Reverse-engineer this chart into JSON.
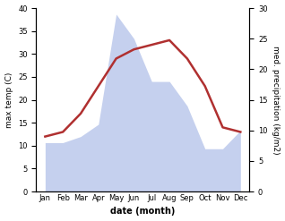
{
  "months": [
    "Jan",
    "Feb",
    "Mar",
    "Apr",
    "May",
    "Jun",
    "Jul",
    "Aug",
    "Sep",
    "Oct",
    "Nov",
    "Dec"
  ],
  "temperature": [
    12,
    13,
    17,
    23,
    29,
    31,
    32,
    33,
    29,
    23,
    14,
    13
  ],
  "precipitation": [
    8,
    8,
    9,
    11,
    29,
    25,
    18,
    18,
    14,
    7,
    7,
    10
  ],
  "temp_color": "#b03030",
  "precip_fill_color": "#c5d0ee",
  "xlabel": "date (month)",
  "ylabel_left": "max temp (C)",
  "ylabel_right": "med. precipitation (kg/m2)",
  "ylim_left": [
    0,
    40
  ],
  "ylim_right": [
    0,
    30
  ],
  "temp_linewidth": 1.8,
  "figsize": [
    3.18,
    2.47
  ],
  "dpi": 100
}
